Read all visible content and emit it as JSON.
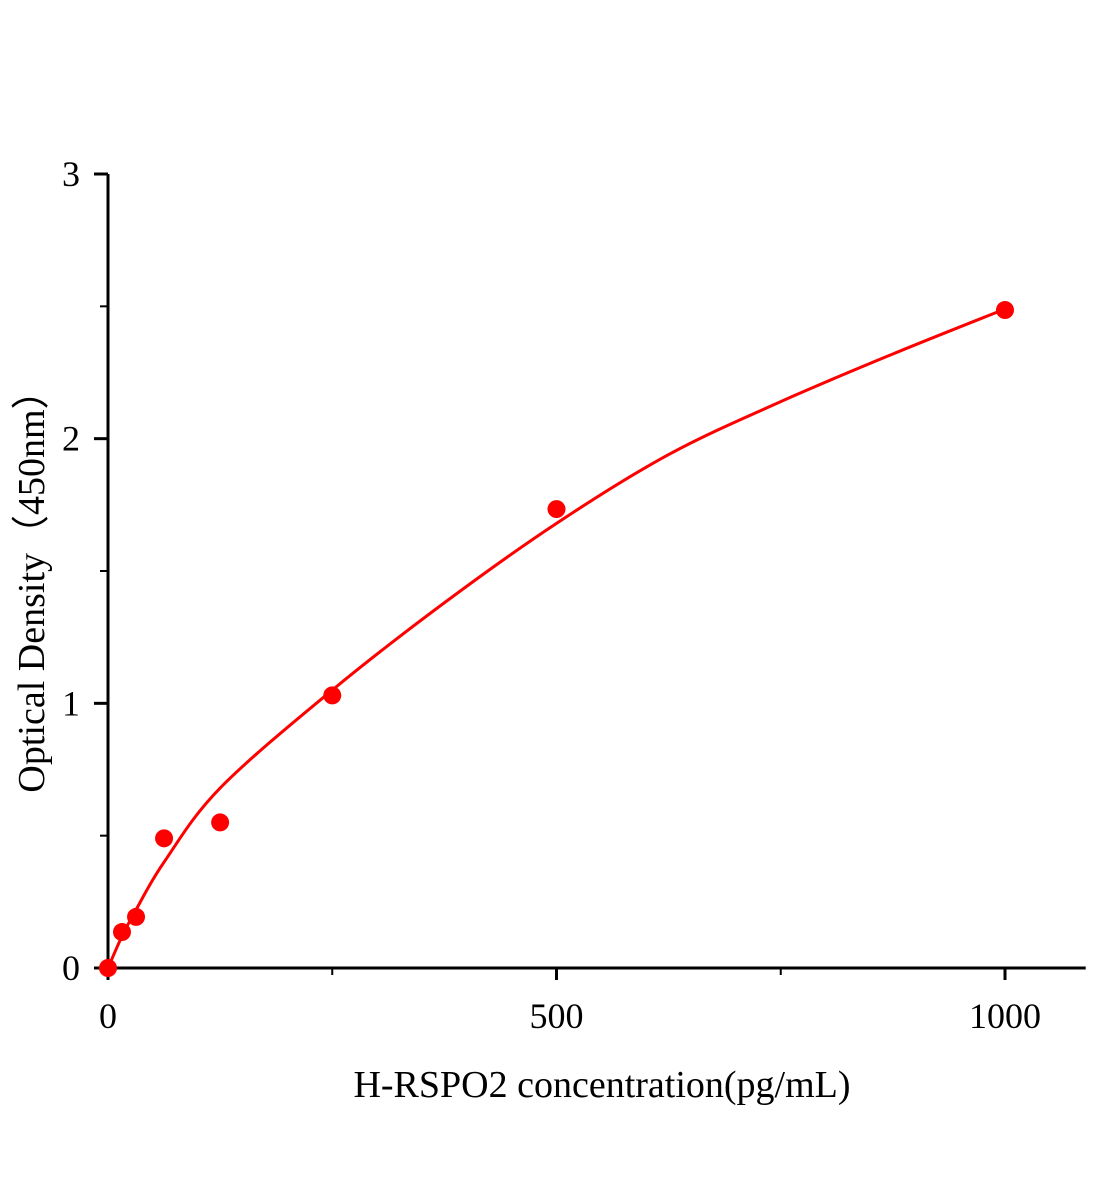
{
  "chart_data": {
    "type": "scatter",
    "title": "",
    "xlabel": "H-RSPO2 concentration(pg/mL)",
    "ylabel": "Optical Density（450nm）",
    "xlim": [
      0,
      1100
    ],
    "ylim": [
      0,
      3
    ],
    "x_ticks": [
      0,
      500,
      1000
    ],
    "x_tick_labels": [
      "0",
      "500",
      "1000"
    ],
    "x_minor_ticks": [
      250,
      750
    ],
    "y_ticks": [
      0,
      1,
      2,
      3
    ],
    "y_tick_labels": [
      "0",
      "1",
      "2",
      "3"
    ],
    "y_minor_ticks": [
      0.5,
      1.5,
      2.5
    ],
    "grid": false,
    "color": "#ff0000",
    "points": {
      "x": [
        0,
        15.6,
        31.25,
        62.5,
        125,
        250,
        500,
        1000
      ],
      "y": [
        0,
        0.136,
        0.193,
        0.49,
        0.55,
        1.03,
        1.734,
        2.486
      ]
    },
    "fit_curve": {
      "x": [
        0,
        15.6,
        31.25,
        62.5,
        125,
        250,
        375,
        500,
        625,
        750,
        875,
        1000
      ],
      "y": [
        0,
        0.12,
        0.22,
        0.4,
        0.68,
        1.05,
        1.38,
        1.68,
        1.94,
        2.14,
        2.32,
        2.49
      ]
    }
  }
}
